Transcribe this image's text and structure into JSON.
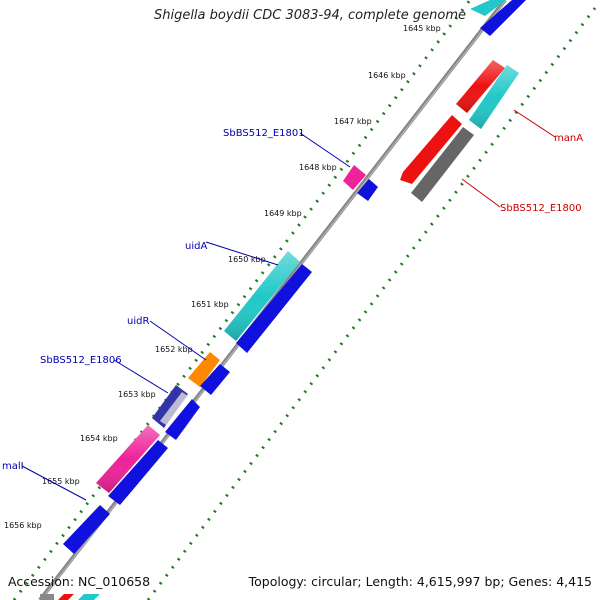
{
  "map": {
    "title": "Shigella boydii CDC 3083-94, complete genome",
    "accession_label": "Accession:",
    "accession": "NC_010658",
    "summary": "Topology: circular; Length: 4,615,997 bp; Genes: 4,415"
  },
  "ticks": [
    "1645 kbp",
    "1646 kbp",
    "1647 kbp",
    "1648 kbp",
    "1649 kbp",
    "1650 kbp",
    "1651 kbp",
    "1652 kbp",
    "1653 kbp",
    "1654 kbp",
    "1655 kbp",
    "1656 kbp"
  ],
  "gene_labels": {
    "left": [
      "SbBS512_E1801",
      "uidA",
      "uidR",
      "SbBS512_E1806",
      "malI"
    ],
    "right": [
      "manA",
      "SbBS512_E1800"
    ]
  },
  "colors": {
    "backbone": "#888888",
    "tick_dots": "#1a7f1a",
    "label_left": "#0000aa",
    "label_right": "#cc0000",
    "blue": "#1111dd",
    "cyan": "#22c8c8",
    "red": "#ee1111",
    "grey": "#666666",
    "magenta": "#ee2299",
    "orange": "#ff8800",
    "navy": "#3333aa"
  }
}
